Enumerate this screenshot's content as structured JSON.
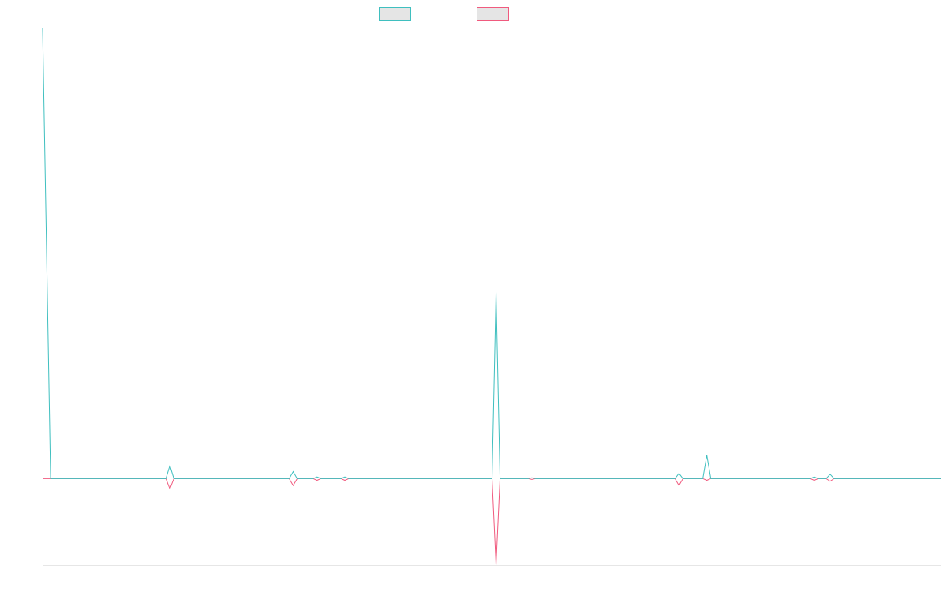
{
  "colors": {
    "series_1": "#3fbfbf",
    "series_2": "#f05a7e",
    "legend_fill": "#e5e5e5",
    "axis": "#e6e6e6"
  },
  "legend": {
    "placement": "top-center",
    "items": [
      {
        "label": "",
        "color": "#3fbfbf"
      },
      {
        "label": "",
        "color": "#f05a7e"
      }
    ]
  },
  "chart_data": {
    "type": "line",
    "title": "",
    "xlabel": "",
    "ylabel": "",
    "grid": false,
    "x": [
      0,
      2,
      3,
      31,
      32,
      33,
      62,
      63,
      64,
      68,
      69,
      70,
      75,
      76,
      77,
      98,
      99,
      100,
      113,
      114,
      115,
      122,
      123,
      124,
      159,
      160,
      161,
      166,
      167,
      168,
      193,
      194,
      195,
      197,
      198,
      199,
      202,
      203,
      204,
      224,
      225,
      226
    ],
    "ylim": [
      -100,
      520
    ],
    "series": [
      {
        "values": [
          520,
          0,
          0,
          0,
          15,
          0,
          0,
          8,
          0,
          0,
          2,
          0,
          0,
          2,
          0,
          0,
          0,
          0,
          0,
          215,
          0,
          0,
          1,
          0,
          0,
          6,
          0,
          0,
          27,
          0,
          0,
          2,
          0,
          0,
          5,
          0,
          0,
          0,
          0,
          0,
          0,
          0
        ]
      },
      {
        "values": [
          0,
          0,
          0,
          0,
          -12,
          0,
          0,
          -8,
          0,
          0,
          -2,
          0,
          0,
          -2,
          0,
          0,
          0,
          0,
          0,
          -100,
          0,
          0,
          -1,
          0,
          0,
          -8,
          0,
          0,
          -2,
          0,
          0,
          -2,
          0,
          0,
          -3,
          0,
          0,
          0,
          0,
          0,
          0,
          0
        ]
      }
    ]
  }
}
